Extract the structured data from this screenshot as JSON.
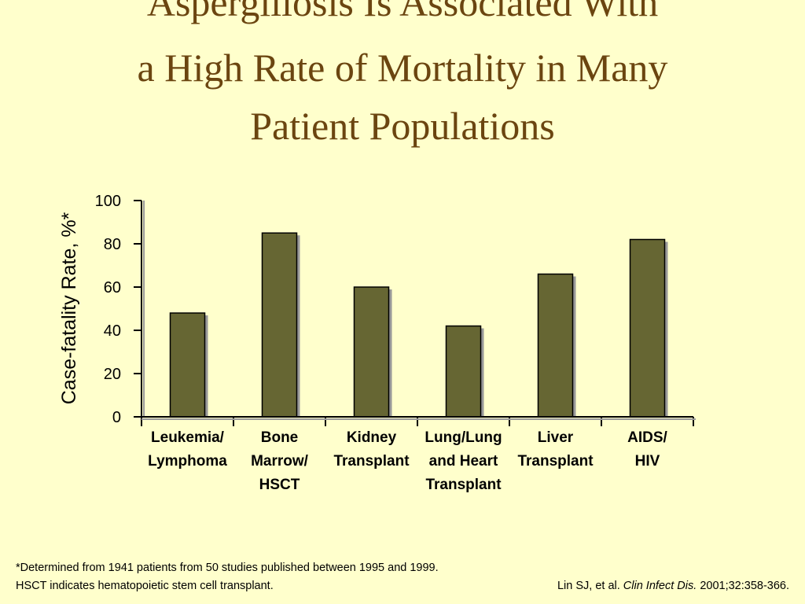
{
  "chart_data": {
    "type": "bar",
    "title": [
      "Aspergillosis Is Associated With",
      "a High Rate of Mortality in Many",
      "Patient Populations"
    ],
    "y_label": "Case-fatality Rate, %*",
    "categories": [
      [
        "Leukemia/",
        "Lymphoma"
      ],
      [
        "Bone",
        "Marrow/",
        "HSCT"
      ],
      [
        "Kidney",
        "Transplant"
      ],
      [
        "Lung/Lung",
        "and Heart",
        "Transplant"
      ],
      [
        "Liver",
        "Transplant"
      ],
      [
        "AIDS/",
        "HIV"
      ]
    ],
    "values": [
      48,
      85,
      60,
      42,
      66,
      82
    ],
    "color": "#666633",
    "ylim": [
      0,
      100
    ],
    "yticks": [
      0,
      20,
      40,
      60,
      80,
      100
    ],
    "footnotes": [
      "*Determined from 1941 patients from 50 studies published between 1995 and 1999.",
      "HSCT indicates hematopoietic stem cell transplant."
    ],
    "citation": [
      "Lin SJ, et al.",
      "Clin Infect Dis.",
      "2001;32:358-366."
    ]
  }
}
